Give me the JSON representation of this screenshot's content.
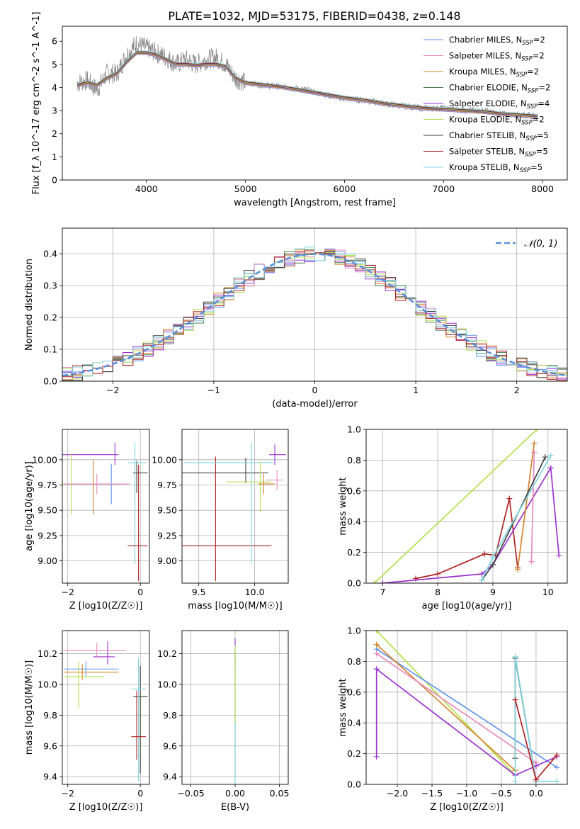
{
  "figure": {
    "title": "PLATE=1032, MJD=53175, FIBERID=0438, z=0.148"
  },
  "chart_data": [
    {
      "id": "spectrum",
      "type": "line",
      "xlabel": "wavelength [Angstrom, rest frame]",
      "ylabel": "Flux [f_λ 10^-17 erg cm^-2 s^-1 A^-1]",
      "xlim": [
        3150,
        8250
      ],
      "ylim": [
        0,
        6.65
      ],
      "xticks": [
        4000,
        5000,
        6000,
        7000,
        8000
      ],
      "yticks": [
        0,
        1,
        2,
        3,
        4,
        5,
        6
      ],
      "legend": "top-right",
      "grid": false,
      "observed": {
        "color": "#808080",
        "x": [
          3300,
          3400,
          3500,
          3600,
          3700,
          3800,
          3900,
          4000,
          4100,
          4200,
          4300,
          4400,
          4500,
          4600,
          4700,
          4800,
          4900,
          5000,
          5200,
          5400,
          5600,
          5800,
          6000,
          6200,
          6400,
          6600,
          6800,
          7000,
          7200,
          7400,
          7600,
          7800,
          7950
        ],
        "y": [
          4.2,
          4.3,
          3.9,
          4.6,
          4.6,
          5.4,
          5.9,
          5.7,
          5.5,
          5.3,
          5.0,
          5.2,
          5.0,
          5.2,
          5.3,
          5.0,
          4.4,
          4.2,
          4.1,
          4.0,
          3.9,
          3.7,
          3.5,
          3.45,
          3.3,
          3.2,
          3.1,
          3.1,
          3.0,
          3.0,
          2.85,
          2.8,
          2.75
        ]
      },
      "series": [
        {
          "name": "Chabrier MILES, N_SSP=2",
          "color": "#6495ED"
        },
        {
          "name": "Salpeter MILES, N_SSP=2",
          "color": "#E88BBF"
        },
        {
          "name": "Kroupa MILES, N_SSP=2",
          "color": "#D2852A"
        },
        {
          "name": "Chabrier ELODIE, N_SSP=2",
          "color": "#4F7F4F"
        },
        {
          "name": "Salpeter ELODIE, N_SSP=4",
          "color": "#9A32CD"
        },
        {
          "name": "Kroupa ELODIE, N_SSP=2",
          "color": "#B3E04B"
        },
        {
          "name": "Chabrier STELIB, N_SSP=5",
          "color": "#404040"
        },
        {
          "name": "Salpeter STELIB, N_SSP=5",
          "color": "#B22222"
        },
        {
          "name": "Kroupa STELIB, N_SSP=5",
          "color": "#7FD4E0"
        }
      ],
      "model_x": [
        3300,
        3400,
        3500,
        3600,
        3700,
        3800,
        3900,
        4000,
        4100,
        4200,
        4300,
        4400,
        4500,
        4600,
        4700,
        4800,
        4900,
        5000,
        5200,
        5400,
        5600,
        5800,
        6000,
        6200,
        6400,
        6600,
        6800,
        7000,
        7200,
        7400,
        7600,
        7800,
        7950
      ],
      "model_y": [
        4.1,
        4.2,
        4.1,
        4.4,
        4.6,
        5.1,
        5.5,
        5.5,
        5.4,
        5.2,
        5.0,
        5.0,
        4.95,
        5.0,
        5.0,
        4.9,
        4.4,
        4.2,
        4.1,
        4.0,
        3.85,
        3.7,
        3.55,
        3.45,
        3.3,
        3.2,
        3.1,
        3.05,
        3.0,
        2.95,
        2.85,
        2.8,
        2.75
      ]
    },
    {
      "id": "residuals",
      "type": "histogram",
      "xlabel": "(data-model)/error",
      "ylabel": "Normed distribution",
      "xlim": [
        -2.5,
        2.5
      ],
      "ylim": [
        0,
        0.48
      ],
      "xticks": [
        -2,
        -1,
        0,
        1,
        2
      ],
      "yticks": [
        0.0,
        0.1,
        0.2,
        0.3,
        0.4
      ],
      "grid": true,
      "legend": "top-right",
      "reference": {
        "name": "𝒩(0, 1)",
        "color": "#5B8DD9",
        "dash": true
      }
    },
    {
      "id": "age-vs-Z",
      "type": "errorbar",
      "xlabel": "Z [log10(Z/Z☉)]",
      "ylabel": "age [log10(age/yr)]",
      "xlim": [
        -2.15,
        0.25
      ],
      "ylim": [
        8.78,
        10.3
      ],
      "xticks": [
        -2,
        0
      ],
      "yticks": [
        9.0,
        9.25,
        9.5,
        9.75,
        10.0
      ],
      "grid": true,
      "points": [
        {
          "series": 4,
          "x": -0.7,
          "y": 10.05,
          "xerr": [
            1.5,
            0.1
          ],
          "yerr": [
            0.1,
            0.12
          ]
        },
        {
          "series": 6,
          "x": -0.1,
          "y": 9.87,
          "xerr": [
            0.1,
            0.3
          ],
          "yerr": [
            0.2,
            0.12
          ]
        },
        {
          "series": 8,
          "x": -0.15,
          "y": 9.97,
          "xerr": [
            0.2,
            0.3
          ],
          "yerr": [
            1.0,
            0.2
          ]
        },
        {
          "series": 7,
          "x": -0.05,
          "y": 9.15,
          "xerr": [
            0.3,
            0.25
          ],
          "yerr": [
            0.35,
            0.8
          ]
        },
        {
          "series": 2,
          "x": -1.3,
          "y": 9.76,
          "xerr": [
            0.8,
            0.8
          ],
          "yerr": [
            0.3,
            0.24
          ]
        },
        {
          "series": 0,
          "x": -0.8,
          "y": 9.76,
          "xerr": [
            1.3,
            0.5
          ],
          "yerr": [
            0.2,
            0.2
          ]
        },
        {
          "series": 5,
          "x": -1.9,
          "y": 9.76,
          "xerr": [
            0.3,
            0.6
          ],
          "yerr": [
            0.3,
            0.3
          ]
        },
        {
          "series": 1,
          "x": -1.2,
          "y": 9.76,
          "xerr": [
            0.9,
            0.9
          ],
          "yerr": [
            0.1,
            0.1
          ]
        }
      ]
    },
    {
      "id": "age-vs-mass",
      "type": "errorbar",
      "xlabel": "mass [log10(M/M☉)]",
      "ylabel": "",
      "xlim": [
        9.35,
        10.3
      ],
      "ylim": [
        8.78,
        10.3
      ],
      "xticks": [
        9.5,
        10.0
      ],
      "yticks": [
        9.0,
        9.25,
        9.5,
        9.75,
        10.0
      ],
      "grid": true,
      "points": [
        {
          "series": 7,
          "x": 9.65,
          "y": 9.15,
          "xerr": [
            0.3,
            0.5
          ],
          "yerr": [
            0.35,
            0.88
          ]
        },
        {
          "series": 6,
          "x": 9.92,
          "y": 9.87,
          "xerr": [
            0.6,
            0.2
          ],
          "yerr": [
            0.1,
            0.15
          ]
        },
        {
          "series": 8,
          "x": 9.97,
          "y": 9.97,
          "xerr": [
            0.6,
            0.2
          ],
          "yerr": [
            1.0,
            0.2
          ]
        },
        {
          "series": 4,
          "x": 10.18,
          "y": 10.05,
          "xerr": [
            0.05,
            0.1
          ],
          "yerr": [
            0.1,
            0.1
          ]
        },
        {
          "series": 5,
          "x": 10.05,
          "y": 9.78,
          "xerr": [
            0.3,
            0.1
          ],
          "yerr": [
            0.3,
            0.2
          ]
        },
        {
          "series": 1,
          "x": 10.2,
          "y": 9.8,
          "xerr": [
            0.1,
            0.05
          ],
          "yerr": [
            0.1,
            0.1
          ]
        },
        {
          "series": 2,
          "x": 10.08,
          "y": 9.76,
          "xerr": [
            0.05,
            0.1
          ],
          "yerr": [
            0.1,
            0.1
          ]
        }
      ]
    },
    {
      "id": "weight-vs-age",
      "type": "line",
      "xlabel": "age [log10(age/yr)]",
      "ylabel": "mass weight",
      "xlim": [
        6.7,
        10.35
      ],
      "ylim": [
        0,
        1.0
      ],
      "xticks": [
        7,
        8,
        9,
        10
      ],
      "yticks": [
        0.0,
        0.2,
        0.4,
        0.6,
        0.8,
        1.0
      ],
      "grid": true,
      "lines": [
        {
          "series": 5,
          "x": [
            6.85,
            9.8
          ],
          "y": [
            0.0,
            1.0
          ]
        },
        {
          "series": 7,
          "x": [
            7.6,
            8.0,
            8.85,
            9.05,
            9.3,
            9.45
          ],
          "y": [
            0.03,
            0.06,
            0.19,
            0.18,
            0.55,
            0.1
          ]
        },
        {
          "series": 4,
          "x": [
            7.0,
            8.8,
            9.0,
            10.05,
            10.2
          ],
          "y": [
            0.0,
            0.06,
            0.12,
            0.75,
            0.18
          ]
        },
        {
          "series": 2,
          "x": [
            9.45,
            9.75
          ],
          "y": [
            0.09,
            0.91
          ]
        },
        {
          "series": 1,
          "x": [
            9.7,
            9.75
          ],
          "y": [
            0.14,
            0.85
          ]
        },
        {
          "series": 6,
          "x": [
            8.8,
            9.0,
            9.95
          ],
          "y": [
            0.02,
            0.12,
            0.82
          ]
        },
        {
          "series": 8,
          "x": [
            8.8,
            9.0,
            10.05
          ],
          "y": [
            0.02,
            0.17,
            0.83
          ]
        }
      ]
    },
    {
      "id": "mass-vs-Z",
      "type": "errorbar",
      "xlabel": "Z [log10(Z/Z☉)]",
      "ylabel": "mass [log10(M/M☉)]",
      "xlim": [
        -2.15,
        0.25
      ],
      "ylim": [
        9.35,
        10.35
      ],
      "xticks": [
        -2,
        0
      ],
      "yticks": [
        9.4,
        9.6,
        9.8,
        10.0,
        10.2
      ],
      "grid": true,
      "points": [
        {
          "series": 4,
          "x": -0.9,
          "y": 10.18,
          "xerr": [
            0.4,
            0.2
          ],
          "yerr": [
            0.05,
            0.1
          ]
        },
        {
          "series": 1,
          "x": -1.2,
          "y": 10.22,
          "xerr": [
            0.9,
            0.8
          ],
          "yerr": [
            0.05,
            0.05
          ]
        },
        {
          "series": 0,
          "x": -1.5,
          "y": 10.1,
          "xerr": [
            0.6,
            0.9
          ],
          "yerr": [
            0.05,
            0.05
          ]
        },
        {
          "series": 2,
          "x": -1.6,
          "y": 10.08,
          "xerr": [
            0.5,
            1.0
          ],
          "yerr": [
            0.05,
            0.05
          ]
        },
        {
          "series": 5,
          "x": -1.7,
          "y": 10.05,
          "xerr": [
            0.4,
            0.7
          ],
          "yerr": [
            0.2,
            0.1
          ]
        },
        {
          "series": 6,
          "x": 0.0,
          "y": 9.92,
          "xerr": [
            0.2,
            0.2
          ],
          "yerr": [
            0.5,
            0.2
          ]
        },
        {
          "series": 8,
          "x": -0.05,
          "y": 9.97,
          "xerr": [
            0.2,
            0.2
          ],
          "yerr": [
            0.6,
            0.2
          ]
        },
        {
          "series": 7,
          "x": -0.1,
          "y": 9.66,
          "xerr": [
            0.15,
            0.25
          ],
          "yerr": [
            0.15,
            0.3
          ]
        }
      ]
    },
    {
      "id": "mass-vs-ebv",
      "type": "errorbar",
      "xlabel": "E(B-V)",
      "ylabel": "",
      "xlim": [
        -0.06,
        0.06
      ],
      "ylim": [
        9.35,
        10.35
      ],
      "xticks": [
        -0.05,
        0.0,
        0.05
      ],
      "yticks": [
        9.4,
        9.6,
        9.8,
        10.0,
        10.2
      ],
      "grid": true,
      "points": [
        {
          "series": 4,
          "x": 0.0,
          "y": 10.2,
          "xerr": [
            0,
            0
          ],
          "yerr": [
            0.1,
            0.1
          ]
        },
        {
          "series": 6,
          "x": 0.0,
          "y": 9.9,
          "xerr": [
            0,
            0
          ],
          "yerr": [
            0.5,
            0.3
          ]
        },
        {
          "series": 8,
          "x": 0.0,
          "y": 9.95,
          "xerr": [
            0,
            0
          ],
          "yerr": [
            0.6,
            0.3
          ]
        },
        {
          "series": 5,
          "x": 0.0,
          "y": 10.05,
          "xerr": [
            0,
            0
          ],
          "yerr": [
            0.3,
            0.2
          ]
        }
      ]
    },
    {
      "id": "weight-vs-Z",
      "type": "line",
      "xlabel": "Z [log10(Z/Z☉)]",
      "ylabel": "mass weight",
      "xlim": [
        -2.45,
        0.45
      ],
      "ylim": [
        0,
        1.0
      ],
      "xticks": [
        -2.0,
        -1.5,
        -1.0,
        -0.5,
        0.0
      ],
      "yticks": [
        0.0,
        0.2,
        0.4,
        0.6,
        0.8,
        1.0
      ],
      "grid": true,
      "lines": [
        {
          "series": 5,
          "x": [
            -2.3,
            -0.3
          ],
          "y": [
            1.0,
            0.06
          ]
        },
        {
          "series": 0,
          "x": [
            -2.3,
            0.3
          ],
          "y": [
            0.88,
            0.11
          ]
        },
        {
          "series": 2,
          "x": [
            -2.3,
            -0.3
          ],
          "y": [
            0.91,
            0.09
          ]
        },
        {
          "series": 1,
          "x": [
            -2.3,
            0.0
          ],
          "y": [
            0.85,
            0.14
          ]
        },
        {
          "series": 4,
          "x": [
            -2.3,
            -2.3,
            -0.3,
            0.0,
            0.3
          ],
          "y": [
            0.18,
            0.75,
            0.06,
            0.12,
            0.18
          ]
        },
        {
          "series": 6,
          "x": [
            -0.3,
            -0.3,
            0.0
          ],
          "y": [
            0.17,
            0.82,
            0.02
          ]
        },
        {
          "series": 8,
          "x": [
            -0.3,
            -0.3,
            0.0,
            0.3
          ],
          "y": [
            0.02,
            0.83,
            0.02,
            0.02
          ]
        },
        {
          "series": 7,
          "x": [
            -0.3,
            0.0,
            0.3
          ],
          "y": [
            0.55,
            0.03,
            0.19
          ]
        }
      ]
    }
  ]
}
